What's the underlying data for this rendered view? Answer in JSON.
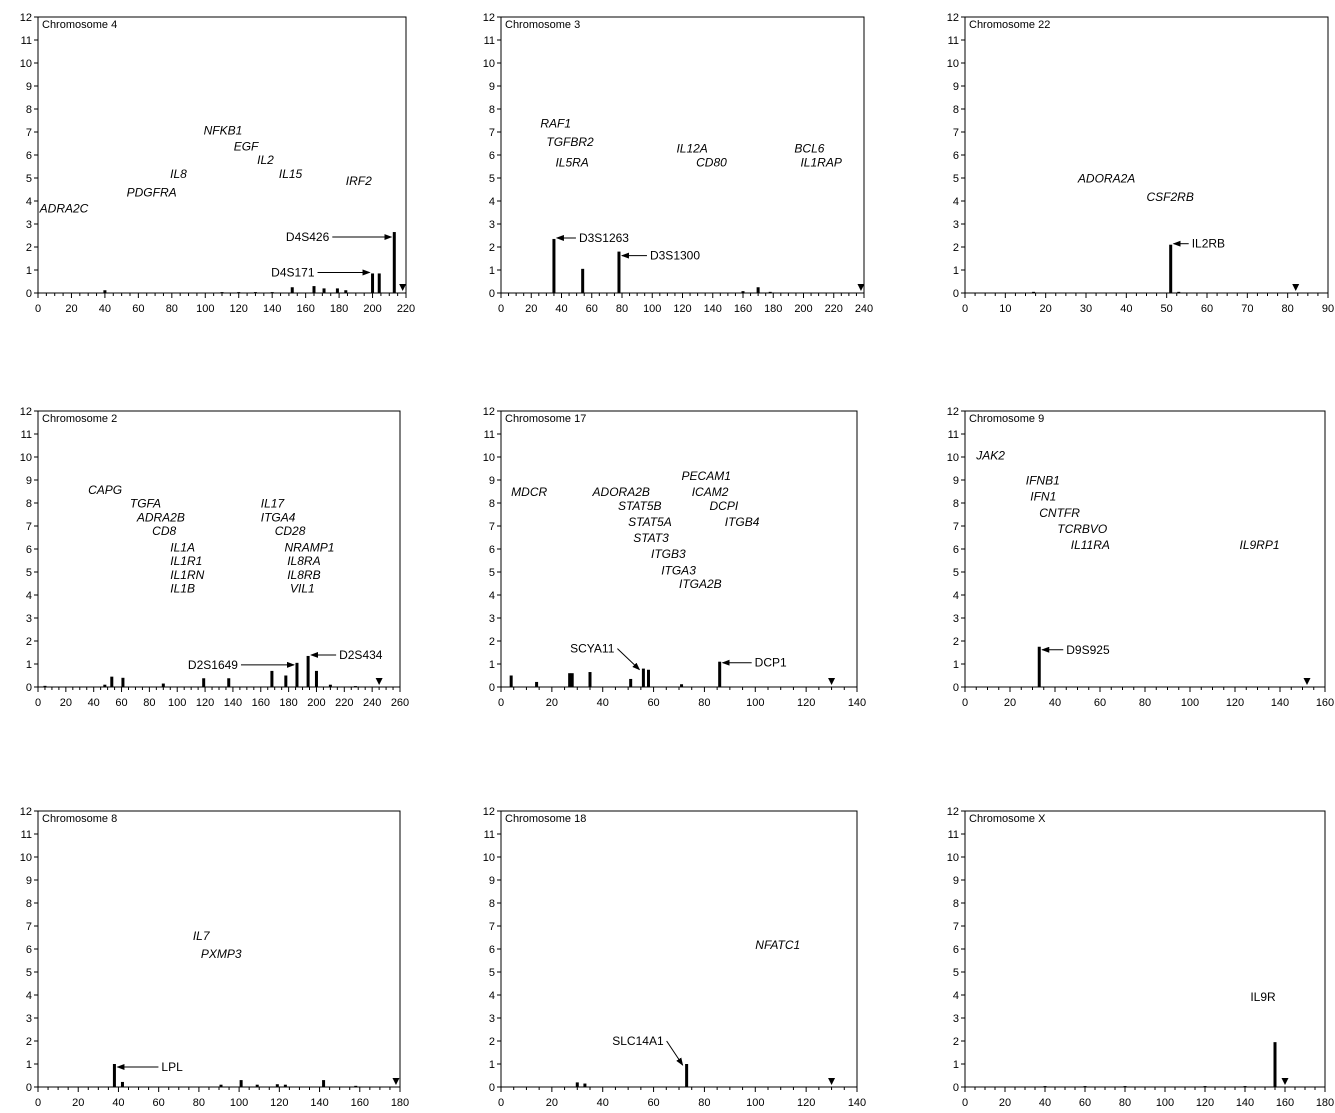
{
  "chart_data": [
    {
      "type": "bar",
      "title": "Chromosome  4",
      "xlim": [
        0,
        220
      ],
      "xticks": [
        0,
        20,
        40,
        60,
        80,
        100,
        120,
        140,
        160,
        180,
        200,
        220
      ],
      "ylim": [
        0,
        12
      ],
      "yticks": [
        0,
        1,
        2,
        3,
        4,
        5,
        6,
        7,
        8,
        9,
        10,
        11,
        12
      ],
      "bars": [
        {
          "x": 40,
          "y": 0.12
        },
        {
          "x": 110,
          "y": 0.04
        },
        {
          "x": 120,
          "y": 0.04
        },
        {
          "x": 130,
          "y": 0.04
        },
        {
          "x": 140,
          "y": 0.04
        },
        {
          "x": 152,
          "y": 0.25
        },
        {
          "x": 165,
          "y": 0.3
        },
        {
          "x": 171,
          "y": 0.2
        },
        {
          "x": 179,
          "y": 0.2
        },
        {
          "x": 184,
          "y": 0.12
        },
        {
          "x": 200,
          "y": 0.85
        },
        {
          "x": 204,
          "y": 0.85
        },
        {
          "x": 213,
          "y": 2.65
        }
      ],
      "genes": [
        {
          "label": "NFKB1",
          "x": 99,
          "y": 6.9
        },
        {
          "label": "EGF",
          "x": 117,
          "y": 6.2
        },
        {
          "label": "IL2",
          "x": 131,
          "y": 5.6
        },
        {
          "label": "IL15",
          "x": 144,
          "y": 5.0
        },
        {
          "label": "IL8",
          "x": 79,
          "y": 5.0
        },
        {
          "label": "IRF2",
          "x": 184,
          "y": 4.7
        },
        {
          "label": "PDGFRA",
          "x": 53,
          "y": 4.2
        },
        {
          "label": "ADRA2C",
          "x": 1,
          "y": 3.5
        }
      ],
      "markers": [
        {
          "label": "D4S426",
          "bar_x": 213,
          "bar_y": 2.65
        },
        {
          "label": "D4S171",
          "bar_x": 200,
          "bar_y": 0.85
        }
      ],
      "triangle_x": 218
    },
    {
      "type": "bar",
      "title": "Chromosome  3",
      "xlim": [
        0,
        240
      ],
      "xticks": [
        0,
        20,
        40,
        60,
        80,
        100,
        120,
        140,
        160,
        180,
        200,
        220,
        240
      ],
      "ylim": [
        0,
        12
      ],
      "yticks": [
        0,
        1,
        2,
        3,
        4,
        5,
        6,
        7,
        8,
        9,
        10,
        11,
        12
      ],
      "bars": [
        {
          "x": 35,
          "y": 2.35
        },
        {
          "x": 54,
          "y": 1.05
        },
        {
          "x": 78,
          "y": 1.8
        },
        {
          "x": 160,
          "y": 0.08
        },
        {
          "x": 170,
          "y": 0.25
        },
        {
          "x": 178,
          "y": 0.05
        }
      ],
      "genes": [
        {
          "label": "RAF1",
          "x": 26,
          "y": 7.2
        },
        {
          "label": "TGFBR2",
          "x": 30,
          "y": 6.4
        },
        {
          "label": "IL5RA",
          "x": 36,
          "y": 5.5
        },
        {
          "label": "IL12A",
          "x": 116,
          "y": 6.1
        },
        {
          "label": "CD80",
          "x": 129,
          "y": 5.5
        },
        {
          "label": "BCL6",
          "x": 194,
          "y": 6.1
        },
        {
          "label": "IL1RAP",
          "x": 198,
          "y": 5.5
        }
      ],
      "markers": [
        {
          "label": "D3S1263",
          "bar_x": 35,
          "bar_y": 2.35
        },
        {
          "label": "D3S1300",
          "bar_x": 78,
          "bar_y": 1.8
        }
      ],
      "triangle_x": 238
    },
    {
      "type": "bar",
      "title": "Chromosome  22",
      "xlim": [
        0,
        90
      ],
      "xticks": [
        0,
        10,
        20,
        30,
        40,
        50,
        60,
        70,
        80,
        90
      ],
      "ylim": [
        0,
        12
      ],
      "yticks": [
        0,
        1,
        2,
        3,
        4,
        5,
        6,
        7,
        8,
        9,
        10,
        11,
        12
      ],
      "bars": [
        {
          "x": 17,
          "y": 0.05
        },
        {
          "x": 51,
          "y": 2.1
        },
        {
          "x": 53,
          "y": 0.05
        }
      ],
      "genes": [
        {
          "label": "ADORA2A",
          "x": 28,
          "y": 4.8
        },
        {
          "label": "CSF2RB",
          "x": 45,
          "y": 4.0
        }
      ],
      "markers": [
        {
          "label": "IL2RB",
          "bar_x": 51,
          "bar_y": 2.1
        }
      ],
      "triangle_x": 82
    },
    {
      "type": "bar",
      "title": "Chromosome  2",
      "xlim": [
        0,
        260
      ],
      "xticks": [
        0,
        20,
        40,
        60,
        80,
        100,
        120,
        140,
        160,
        180,
        200,
        220,
        240,
        260
      ],
      "ylim": [
        0,
        12
      ],
      "yticks": [
        0,
        1,
        2,
        3,
        4,
        5,
        6,
        7,
        8,
        9,
        10,
        11,
        12
      ],
      "bars": [
        {
          "x": 5,
          "y": 0.05
        },
        {
          "x": 48,
          "y": 0.1
        },
        {
          "x": 53,
          "y": 0.45
        },
        {
          "x": 61,
          "y": 0.4
        },
        {
          "x": 90,
          "y": 0.15
        },
        {
          "x": 119,
          "y": 0.38
        },
        {
          "x": 137,
          "y": 0.38
        },
        {
          "x": 168,
          "y": 0.7
        },
        {
          "x": 178,
          "y": 0.5
        },
        {
          "x": 186,
          "y": 1.05
        },
        {
          "x": 194,
          "y": 1.35
        },
        {
          "x": 200,
          "y": 0.7
        },
        {
          "x": 210,
          "y": 0.1
        },
        {
          "x": 228,
          "y": 0.04
        }
      ],
      "genes": [
        {
          "label": "CAPG",
          "x": 36,
          "y": 8.4
        },
        {
          "label": "TGFA",
          "x": 66,
          "y": 7.8
        },
        {
          "label": "ADRA2B",
          "x": 71,
          "y": 7.2
        },
        {
          "label": "CD8",
          "x": 82,
          "y": 6.6
        },
        {
          "label": "IL1A",
          "x": 95,
          "y": 5.9
        },
        {
          "label": "IL1R1",
          "x": 95,
          "y": 5.3
        },
        {
          "label": "IL1RN",
          "x": 95,
          "y": 4.7
        },
        {
          "label": "IL1B",
          "x": 95,
          "y": 4.1
        },
        {
          "label": "IL17",
          "x": 160,
          "y": 7.8
        },
        {
          "label": "ITGA4",
          "x": 160,
          "y": 7.2
        },
        {
          "label": "CD28",
          "x": 170,
          "y": 6.6
        },
        {
          "label": "NRAMP1",
          "x": 177,
          "y": 5.9
        },
        {
          "label": "IL8RA",
          "x": 179,
          "y": 5.3
        },
        {
          "label": "IL8RB",
          "x": 179,
          "y": 4.7
        },
        {
          "label": "VIL1",
          "x": 181,
          "y": 4.1
        }
      ],
      "markers": [
        {
          "label": "D2S1649",
          "bar_x": 186,
          "bar_y": 1.05
        },
        {
          "label": "D2S434",
          "bar_x": 194,
          "bar_y": 1.35
        }
      ],
      "triangle_x": 245
    },
    {
      "type": "bar",
      "title": "Chromosome  17",
      "xlim": [
        0,
        140
      ],
      "xticks": [
        0,
        20,
        40,
        60,
        80,
        100,
        120,
        140
      ],
      "ylim": [
        0,
        12
      ],
      "yticks": [
        0,
        1,
        2,
        3,
        4,
        5,
        6,
        7,
        8,
        9,
        10,
        11,
        12
      ],
      "bars": [
        {
          "x": 4,
          "y": 0.5
        },
        {
          "x": 14,
          "y": 0.22
        },
        {
          "x": 27,
          "y": 0.6
        },
        {
          "x": 28,
          "y": 0.6
        },
        {
          "x": 35,
          "y": 0.65
        },
        {
          "x": 51,
          "y": 0.35
        },
        {
          "x": 56,
          "y": 0.8
        },
        {
          "x": 58,
          "y": 0.75
        },
        {
          "x": 71,
          "y": 0.12
        },
        {
          "x": 86,
          "y": 1.1
        }
      ],
      "genes": [
        {
          "label": "MDCR",
          "x": 4,
          "y": 8.3
        },
        {
          "label": "ADORA2B",
          "x": 36,
          "y": 8.3
        },
        {
          "label": "STAT5B",
          "x": 46,
          "y": 7.7
        },
        {
          "label": "STAT5A",
          "x": 50,
          "y": 7.0
        },
        {
          "label": "STAT3",
          "x": 52,
          "y": 6.3
        },
        {
          "label": "ITGB3",
          "x": 59,
          "y": 5.6
        },
        {
          "label": "ITGA3",
          "x": 63,
          "y": 4.9
        },
        {
          "label": "ITGA2B",
          "x": 70,
          "y": 4.3
        },
        {
          "label": "PECAM1",
          "x": 71,
          "y": 9.0
        },
        {
          "label": "ICAM2",
          "x": 75,
          "y": 8.3
        },
        {
          "label": "DCPI",
          "x": 82,
          "y": 7.7
        },
        {
          "label": "ITGB4",
          "x": 88,
          "y": 7.0
        }
      ],
      "markers": [
        {
          "label": "SCYA11",
          "bar_x": 56,
          "bar_y": 0.8
        },
        {
          "label": "DCP1",
          "bar_x": 86,
          "bar_y": 1.1
        }
      ],
      "triangle_x": 130
    },
    {
      "type": "bar",
      "title": "Chromosome  9",
      "xlim": [
        0,
        160
      ],
      "xticks": [
        0,
        20,
        40,
        60,
        80,
        100,
        120,
        140,
        160
      ],
      "ylim": [
        0,
        12
      ],
      "yticks": [
        0,
        1,
        2,
        3,
        4,
        5,
        6,
        7,
        8,
        9,
        10,
        11,
        12
      ],
      "bars": [
        {
          "x": 33,
          "y": 1.75
        }
      ],
      "genes": [
        {
          "label": "JAK2",
          "x": 5,
          "y": 9.9
        },
        {
          "label": "IFNB1",
          "x": 27,
          "y": 8.8
        },
        {
          "label": "IFN1",
          "x": 29,
          "y": 8.1
        },
        {
          "label": "CNTFR",
          "x": 33,
          "y": 7.4
        },
        {
          "label": "TCRBVO",
          "x": 41,
          "y": 6.7
        },
        {
          "label": "IL11RA",
          "x": 47,
          "y": 6.0
        },
        {
          "label": "IL9RP1",
          "x": 122,
          "y": 6.0
        }
      ],
      "markers": [
        {
          "label": "D9S925",
          "bar_x": 33,
          "bar_y": 1.75
        }
      ],
      "triangle_x": 152
    },
    {
      "type": "bar",
      "title": "Chromosome  8",
      "xlim": [
        0,
        180
      ],
      "xticks": [
        0,
        20,
        40,
        60,
        80,
        100,
        120,
        140,
        160,
        180
      ],
      "ylim": [
        0,
        12
      ],
      "yticks": [
        0,
        1,
        2,
        3,
        4,
        5,
        6,
        7,
        8,
        9,
        10,
        11,
        12
      ],
      "bars": [
        {
          "x": 38,
          "y": 1.0
        },
        {
          "x": 42,
          "y": 0.22
        },
        {
          "x": 91,
          "y": 0.1
        },
        {
          "x": 101,
          "y": 0.3
        },
        {
          "x": 109,
          "y": 0.1
        },
        {
          "x": 119,
          "y": 0.12
        },
        {
          "x": 123,
          "y": 0.1
        },
        {
          "x": 142,
          "y": 0.3
        },
        {
          "x": 158,
          "y": 0.05
        }
      ],
      "genes": [
        {
          "label": "IL7",
          "x": 77,
          "y": 6.4
        },
        {
          "label": "PXMP3",
          "x": 81,
          "y": 5.6
        }
      ],
      "markers": [
        {
          "label": "LPL",
          "bar_x": 38,
          "bar_y": 1.0
        }
      ],
      "triangle_x": 178
    },
    {
      "type": "bar",
      "title": "Chromosome  18",
      "xlim": [
        0,
        140
      ],
      "xticks": [
        0,
        20,
        40,
        60,
        80,
        100,
        120,
        140
      ],
      "ylim": [
        0,
        12
      ],
      "yticks": [
        0,
        1,
        2,
        3,
        4,
        5,
        6,
        7,
        8,
        9,
        10,
        11,
        12
      ],
      "bars": [
        {
          "x": 30,
          "y": 0.2
        },
        {
          "x": 33,
          "y": 0.15
        },
        {
          "x": 73,
          "y": 1.0
        }
      ],
      "genes": [
        {
          "label": "NFATC1",
          "x": 100,
          "y": 6.0
        }
      ],
      "markers": [
        {
          "label": "SLC14A1",
          "bar_x": 73,
          "bar_y": 1.0
        }
      ],
      "triangle_x": 130
    },
    {
      "type": "bar",
      "title": "Chromosome  X",
      "xlim": [
        0,
        180
      ],
      "xticks": [
        0,
        20,
        40,
        60,
        80,
        100,
        120,
        140,
        160,
        180
      ],
      "ylim": [
        0,
        12
      ],
      "yticks": [
        0,
        1,
        2,
        3,
        4,
        5,
        6,
        7,
        8,
        9,
        10,
        11,
        12
      ],
      "bars": [
        {
          "x": 40,
          "y": 0.04
        },
        {
          "x": 60,
          "y": 0.04
        },
        {
          "x": 80,
          "y": 0.04
        },
        {
          "x": 120,
          "y": 0.04
        },
        {
          "x": 140,
          "y": 0.04
        },
        {
          "x": 155,
          "y": 1.95
        }
      ],
      "genes": [],
      "markers": [
        {
          "label": "IL9R",
          "bar_x": 155,
          "bar_y": 1.95
        }
      ],
      "triangle_x": 160
    }
  ]
}
